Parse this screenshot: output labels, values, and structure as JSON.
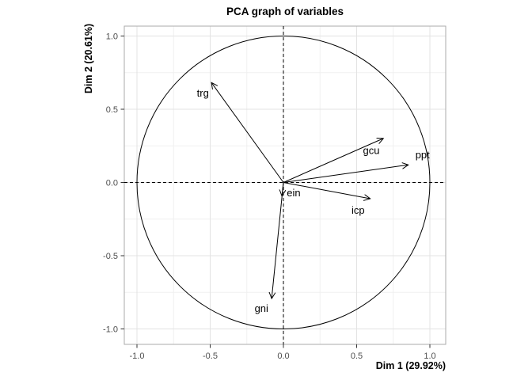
{
  "title": "PCA graph of variables",
  "axes": {
    "x_label": "Dim 1 (29.92%)",
    "y_label": "Dim 2 (20.61%)",
    "x_ticks": [
      {
        "v": -1.0,
        "label": "-1.0"
      },
      {
        "v": -0.5,
        "label": "-0.5"
      },
      {
        "v": 0.0,
        "label": "0.0"
      },
      {
        "v": 0.5,
        "label": "0.5"
      },
      {
        "v": 1.0,
        "label": "1.0"
      }
    ],
    "y_ticks": [
      {
        "v": -1.0,
        "label": "-1.0"
      },
      {
        "v": -0.5,
        "label": "-0.5"
      },
      {
        "v": 0.0,
        "label": "0.0"
      },
      {
        "v": 0.5,
        "label": "0.5"
      },
      {
        "v": 1.0,
        "label": "1.0"
      }
    ]
  },
  "chart_data": {
    "type": "scatter",
    "subtype": "pca-correlation-circle",
    "title": "PCA graph of variables",
    "xlabel": "Dim 1 (29.92%)",
    "ylabel": "Dim 2 (20.61%)",
    "xlim": [
      -1.09,
      1.11
    ],
    "ylim": [
      -1.1,
      1.07
    ],
    "grid": true,
    "unit_circle": true,
    "zero_lines": "dashed",
    "arrows_from_origin": true,
    "variables": [
      {
        "name": "trg",
        "dim1": -0.49,
        "dim2": 0.68,
        "label_x": -0.55,
        "label_y": 0.61
      },
      {
        "name": "gcu",
        "dim1": 0.68,
        "dim2": 0.3,
        "label_x": 0.6,
        "label_y": 0.22
      },
      {
        "name": "ppt",
        "dim1": 0.85,
        "dim2": 0.12,
        "label_x": 0.95,
        "label_y": 0.19
      },
      {
        "name": "icp",
        "dim1": 0.59,
        "dim2": -0.11,
        "label_x": 0.51,
        "label_y": -0.19
      },
      {
        "name": "ein",
        "dim1": -0.01,
        "dim2": -0.09,
        "label_x": 0.07,
        "label_y": -0.07
      },
      {
        "name": "gni",
        "dim1": -0.08,
        "dim2": -0.79,
        "label_x": -0.15,
        "label_y": -0.86
      }
    ]
  },
  "colors": {
    "background": "#ffffff",
    "panel_background": "#ffffff",
    "panel_border": "#ababab",
    "grid_major": "#e3e3e3",
    "grid_minor": "#f0f0f0",
    "tick_mark": "#333333",
    "tick_label": "#4d4d4d",
    "geometry": "#000000"
  }
}
